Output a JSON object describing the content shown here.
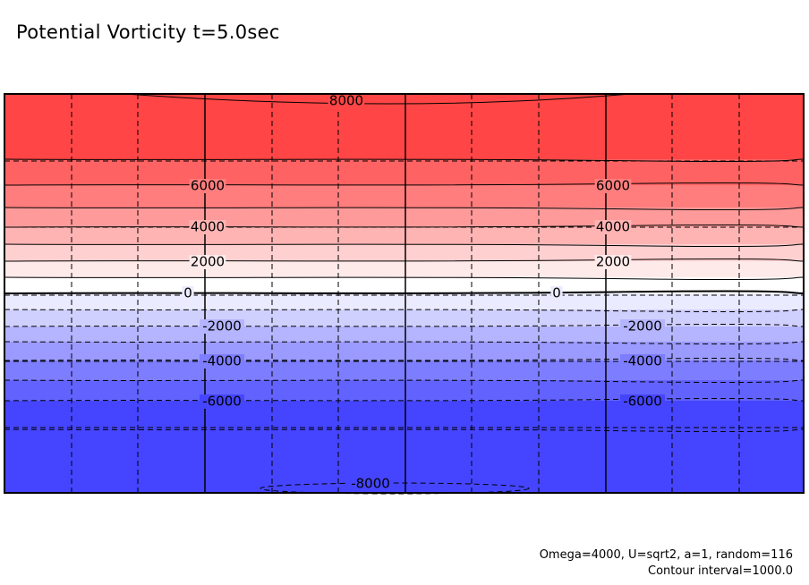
{
  "chart_data": {
    "type": "heatmap",
    "title": "Potential Vorticity t=5.0sec",
    "xlabel": "",
    "ylabel": "",
    "grid": true,
    "levels": [
      {
        "value": 8000,
        "color": "#ff4545"
      },
      {
        "value": 7000,
        "color": "#ff6262"
      },
      {
        "value": 6000,
        "color": "#ff7d7d"
      },
      {
        "value": 5000,
        "color": "#ff9a9a"
      },
      {
        "value": 4000,
        "color": "#ffb4b4"
      },
      {
        "value": 3000,
        "color": "#ffd0d0"
      },
      {
        "value": 2000,
        "color": "#ffeaea"
      },
      {
        "value": 1000,
        "color": "#ffffff"
      },
      {
        "value": -1000,
        "color": "#ebebff"
      },
      {
        "value": -2000,
        "color": "#d0d0ff"
      },
      {
        "value": -3000,
        "color": "#b4b4ff"
      },
      {
        "value": -4000,
        "color": "#9a9aff"
      },
      {
        "value": -5000,
        "color": "#7d7dff"
      },
      {
        "value": -6000,
        "color": "#6262ff"
      },
      {
        "value": -7000,
        "color": "#4545ff"
      }
    ],
    "contour_labels": [
      {
        "text": "8000",
        "value": 8000
      },
      {
        "text": "6000",
        "value": 6000
      },
      {
        "text": "6000",
        "value": 6000
      },
      {
        "text": "4000",
        "value": 4000
      },
      {
        "text": "4000",
        "value": 4000
      },
      {
        "text": "2000",
        "value": 2000
      },
      {
        "text": "2000",
        "value": 2000
      },
      {
        "text": "0",
        "value": 0
      },
      {
        "text": "0",
        "value": 0
      },
      {
        "text": "-2000",
        "value": -2000
      },
      {
        "text": "-2000",
        "value": -2000
      },
      {
        "text": "-4000",
        "value": -4000
      },
      {
        "text": "-4000",
        "value": -4000
      },
      {
        "text": "-6000",
        "value": -6000
      },
      {
        "text": "-6000",
        "value": -6000
      },
      {
        "text": "-8000",
        "value": -8000
      }
    ],
    "annotations": [
      "Omega=4000, U=sqrt2, a=1, random=116",
      "Contour interval=1000.0"
    ],
    "contour_interval": 1000.0
  }
}
